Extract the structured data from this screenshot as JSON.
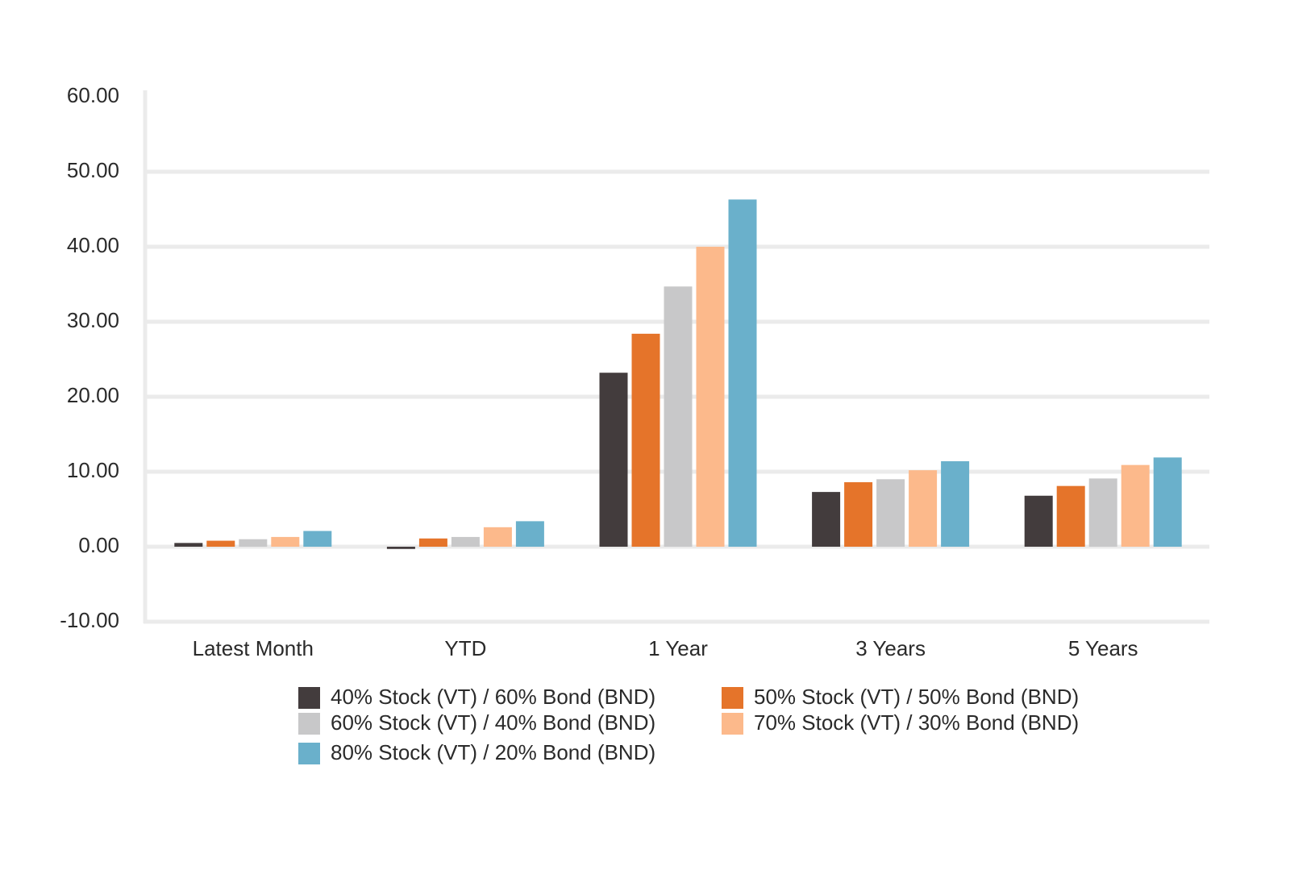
{
  "chart_data": {
    "type": "bar",
    "title": "",
    "xlabel": "",
    "ylabel": "",
    "categories": [
      "Latest Month",
      "YTD",
      "1 Year",
      "3 Years",
      "5 Years"
    ],
    "yticks": [
      "60.00",
      "50.00",
      "40.00",
      "30.00",
      "20.00",
      "10.00",
      "0.00",
      "-10.00"
    ],
    "ylim": [
      -10,
      60
    ],
    "grid": true,
    "legend_position": "bottom",
    "series": [
      {
        "name": "40% Stock (VT) / 60% Bond (BND)",
        "color": "#433c3d",
        "values": [
          0.5,
          -0.3,
          23.2,
          7.3,
          6.8
        ]
      },
      {
        "name": "50% Stock (VT) / 50% Bond (BND)",
        "color": "#e5742a",
        "values": [
          0.8,
          1.1,
          28.4,
          8.6,
          8.1
        ]
      },
      {
        "name": "60% Stock (VT) / 40% Bond (BND)",
        "color": "#c8c8c9",
        "values": [
          1.0,
          1.3,
          34.7,
          9.0,
          9.1
        ]
      },
      {
        "name": "70% Stock (VT) / 30% Bond (BND)",
        "color": "#fcb98b",
        "values": [
          1.3,
          2.6,
          40.0,
          10.2,
          10.9
        ]
      },
      {
        "name": "80% Stock (VT) / 20% Bond (BND)",
        "color": "#6ab0cb",
        "values": [
          2.1,
          3.4,
          46.3,
          11.4,
          11.9
        ]
      }
    ]
  }
}
